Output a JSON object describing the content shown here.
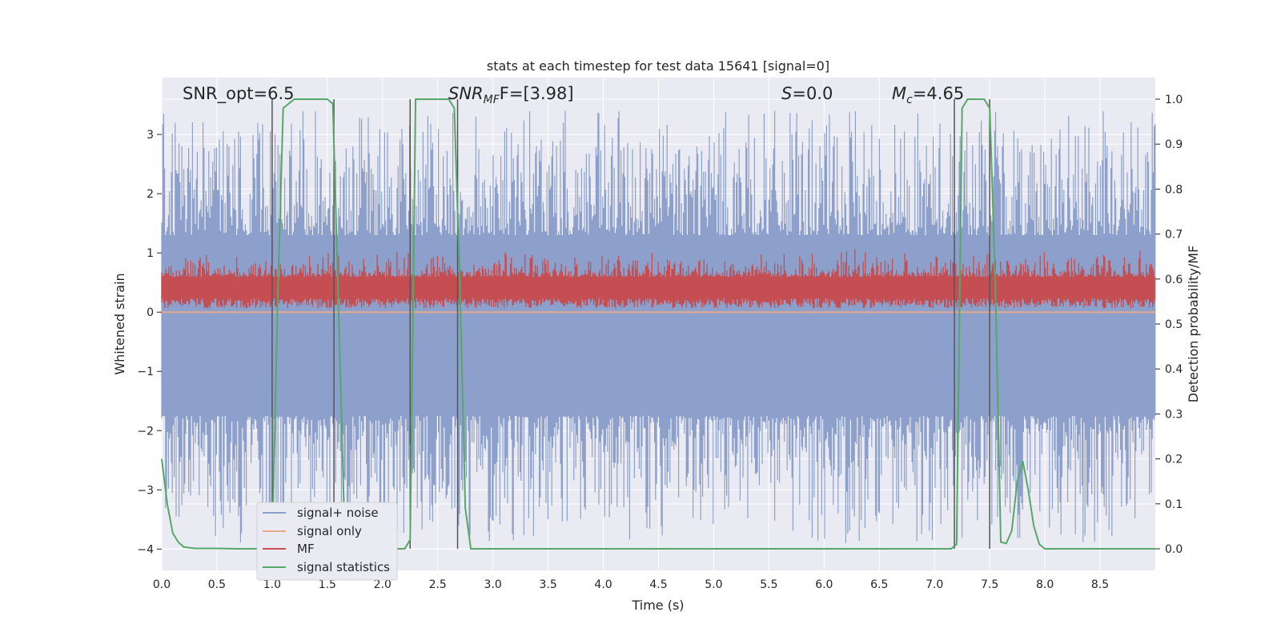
{
  "chart_data": {
    "type": "line",
    "title": "stats at each timestep for test data 15641 [signal=0]",
    "xlabel": "Time (s)",
    "ylabel_left": "Whitened strain",
    "ylabel_right": "Detection probability/MF",
    "xlim": [
      0,
      9.0
    ],
    "ylim_left": [
      -4.36,
      3.96
    ],
    "ylim_right": [
      -0.048,
      1.048
    ],
    "xticks": [
      "0.0",
      "0.5",
      "1.0",
      "1.5",
      "2.0",
      "2.5",
      "3.0",
      "3.5",
      "4.0",
      "4.5",
      "5.0",
      "5.5",
      "6.0",
      "6.5",
      "7.0",
      "7.5",
      "8.0",
      "8.5"
    ],
    "yticks_left": [
      "−4",
      "−3",
      "−2",
      "−1",
      "0",
      "1",
      "2",
      "3"
    ],
    "yticks_right": [
      "0.0",
      "0.1",
      "0.2",
      "0.3",
      "0.4",
      "0.5",
      "0.6",
      "0.7",
      "0.8",
      "0.9",
      "1.0"
    ],
    "grid": true,
    "legend_position": "lower-left",
    "annotations": {
      "snr_opt": "SNR_opt=6.5",
      "snr_mf_main": "SNR",
      "snr_mf_sub": "MF",
      "snr_mf_rest": "F=[3.98]",
      "s_main": "S",
      "s_rest": "=0.0",
      "mc_main": "M",
      "mc_sub": "c",
      "mc_rest": "=4.65"
    },
    "series": [
      {
        "name": "signal+ noise",
        "color": "#8da0cb",
        "axis": "left",
        "band": {
          "core": [
            -1.75,
            1.3
          ],
          "peak_max": 3.4,
          "peak_min": -3.9
        }
      },
      {
        "name": "signal only",
        "color": "#e8a98a",
        "axis": "left",
        "y": 0.0
      },
      {
        "name": "MF",
        "color": "#c44e52",
        "axis": "right",
        "band": {
          "core": [
            0.545,
            0.605
          ],
          "max": 0.66,
          "min": 0.535
        }
      },
      {
        "name": "signal statistics",
        "color": "#55a868",
        "axis": "right",
        "x": [
          0.0,
          0.05,
          0.1,
          0.15,
          0.2,
          0.3,
          0.5,
          0.7,
          0.9,
          1.0,
          1.05,
          1.1,
          1.2,
          1.5,
          1.55,
          1.6,
          1.65,
          1.7,
          1.8,
          2.0,
          2.2,
          2.25,
          2.3,
          2.35,
          2.6,
          2.65,
          2.7,
          2.75,
          2.8,
          3.0,
          4.0,
          5.0,
          6.0,
          7.0,
          7.15,
          7.2,
          7.25,
          7.3,
          7.35,
          7.45,
          7.5,
          7.55,
          7.6,
          7.65,
          7.7,
          7.75,
          7.8,
          7.85,
          7.9,
          7.95,
          8.0,
          8.05,
          8.2,
          8.5,
          9.0
        ],
        "y": [
          0.2,
          0.1,
          0.035,
          0.015,
          0.004,
          0.001,
          0.001,
          0.0,
          0.0,
          0.0,
          0.55,
          0.98,
          1.0,
          1.0,
          0.99,
          0.55,
          0.1,
          0.0,
          0.0,
          0.0,
          0.0,
          0.02,
          1.0,
          1.0,
          1.0,
          0.98,
          0.6,
          0.09,
          0.0,
          0.0,
          0.0,
          0.0,
          0.0,
          0.0,
          0.0,
          0.01,
          0.98,
          1.0,
          1.0,
          1.0,
          0.98,
          0.6,
          0.015,
          0.012,
          0.04,
          0.15,
          0.195,
          0.13,
          0.05,
          0.01,
          0.0,
          0.0,
          0.0,
          0.0,
          0.0
        ]
      }
    ],
    "vertical_markers_x": [
      1.0,
      1.56,
      2.25,
      2.68,
      7.18,
      7.5
    ]
  }
}
